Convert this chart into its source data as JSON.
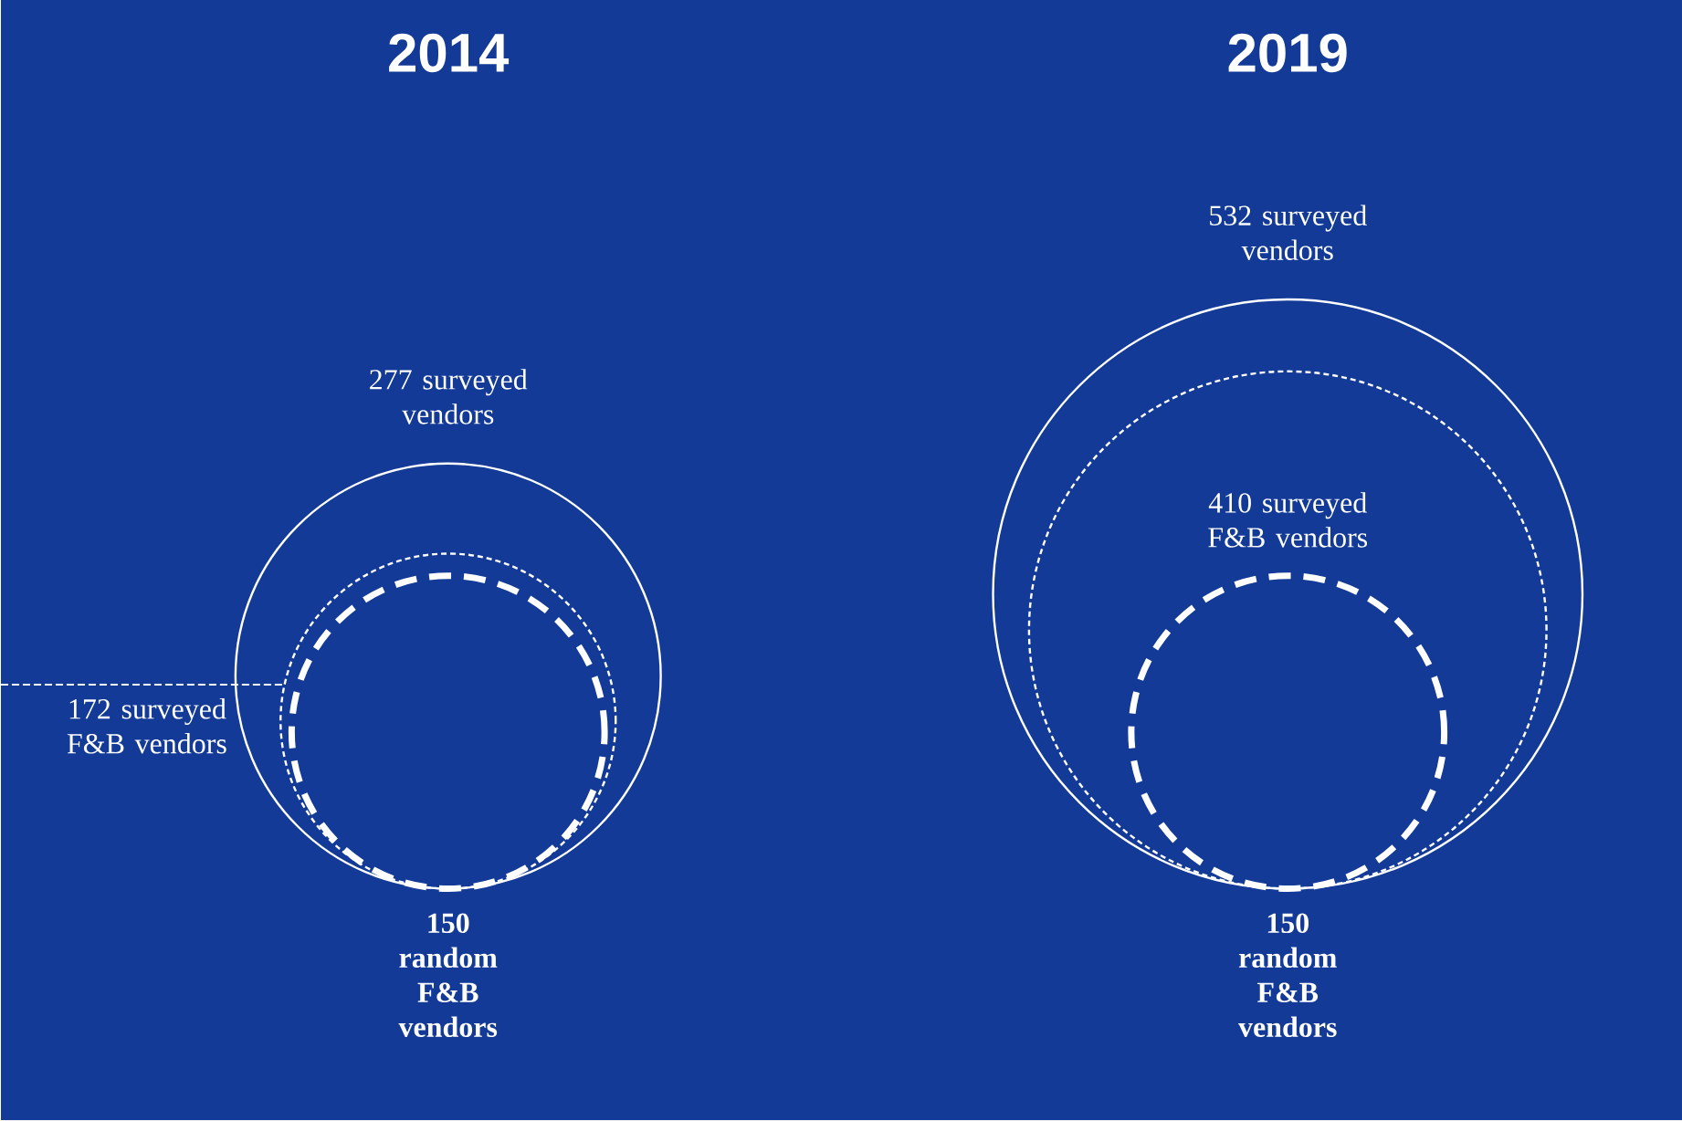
{
  "chart_data": [
    {
      "type": "other",
      "title": "2014",
      "categories": [
        "surveyed vendors",
        "surveyed F&B vendors",
        "random F&B vendors"
      ],
      "values": [
        277,
        172,
        150
      ],
      "value_labels": [
        "277",
        "172",
        "150"
      ],
      "color": "#ffffff"
    },
    {
      "type": "other",
      "title": "2019",
      "categories": [
        "surveyed vendors",
        "surveyed F&B vendors",
        "random F&B vendors"
      ],
      "values": [
        532,
        410,
        150
      ],
      "value_labels": [
        "532",
        "410",
        "150"
      ],
      "color": "#ffffff"
    }
  ]
}
